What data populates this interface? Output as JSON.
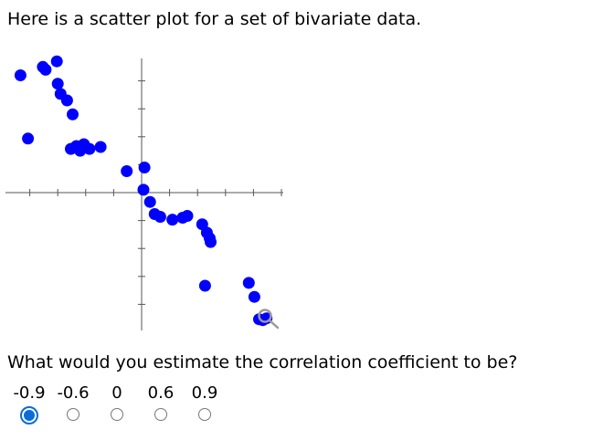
{
  "intro_text": "Here is a scatter plot for a set of bivariate data.",
  "question_text": "What would you estimate the correlation coefficient to be?",
  "options": [
    {
      "label": "-0.9",
      "selected": true
    },
    {
      "label": "-0.6",
      "selected": false
    },
    {
      "label": "0",
      "selected": false
    },
    {
      "label": "0.6",
      "selected": false
    },
    {
      "label": "0.9",
      "selected": false
    }
  ],
  "chart_data": {
    "type": "scatter",
    "xlim": [
      -15,
      15
    ],
    "ylim": [
      -15,
      15
    ],
    "grid": false,
    "axis_ticks": true,
    "point_color": "#0000ff",
    "x": [
      -13.0,
      -10.6,
      -10.3,
      -9.1,
      -9.0,
      -8.7,
      -8.0,
      -7.4,
      -12.2,
      -7.6,
      -7.0,
      -6.2,
      -6.6,
      -5.6,
      -4.4,
      -1.6,
      0.2,
      0.3,
      0.9,
      1.4,
      2.0,
      3.3,
      4.4,
      4.9,
      6.5,
      7.0,
      7.3,
      7.4,
      6.8,
      11.5,
      12.1,
      12.6,
      13.0,
      13.4
    ],
    "y": [
      12.6,
      13.5,
      13.2,
      14.1,
      11.7,
      10.6,
      9.9,
      8.4,
      5.8,
      4.7,
      5.0,
      5.2,
      4.5,
      4.7,
      4.9,
      2.3,
      0.3,
      2.7,
      -1.0,
      -2.3,
      -2.6,
      -2.9,
      -2.7,
      -2.5,
      -3.4,
      -4.3,
      -4.9,
      -5.3,
      -10.0,
      -9.7,
      -11.2,
      -13.6,
      -13.7,
      -13.5
    ]
  }
}
